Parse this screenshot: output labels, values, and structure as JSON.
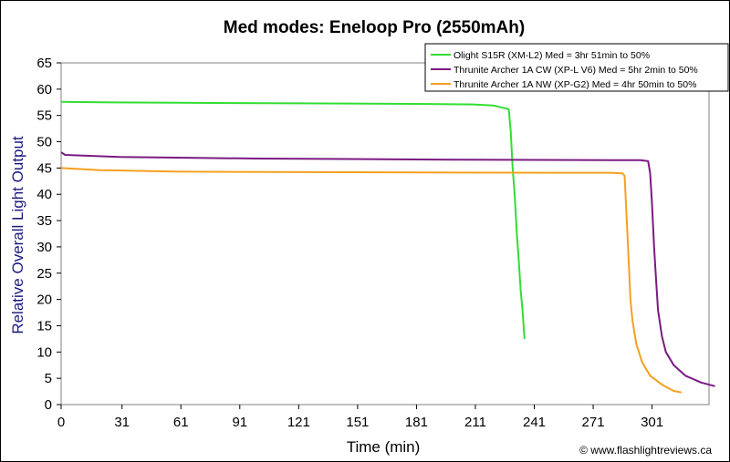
{
  "chart_data": {
    "type": "line",
    "title": "Med modes: Eneloop Pro (2550mAh)",
    "xlabel": "Time (min)",
    "ylabel": "Relative Overall Light Output",
    "xlim": [
      0,
      330
    ],
    "ylim": [
      0,
      65
    ],
    "xticks": [
      "0",
      "31",
      "61",
      "91",
      "121",
      "151",
      "181",
      "211",
      "241",
      "271",
      "301"
    ],
    "yticks": [
      "0",
      "5",
      "10",
      "15",
      "20",
      "25",
      "30",
      "35",
      "40",
      "45",
      "50",
      "55",
      "60",
      "65"
    ],
    "grid": false,
    "legend_position": "top-right",
    "credit": "© www.flashlightreviews.ca",
    "series": [
      {
        "name": "Olight S15R (XM-L2) Med = 3hr 51min to 50%",
        "color": "#33dd33",
        "points": [
          [
            0,
            57.6
          ],
          [
            20,
            57.5
          ],
          [
            60,
            57.4
          ],
          [
            120,
            57.3
          ],
          [
            180,
            57.2
          ],
          [
            210,
            57.1
          ],
          [
            220,
            56.9
          ],
          [
            228,
            56.2
          ],
          [
            229,
            52
          ],
          [
            230,
            45
          ],
          [
            231,
            40
          ],
          [
            232,
            33
          ],
          [
            233,
            28
          ],
          [
            234,
            22
          ],
          [
            235,
            18
          ],
          [
            236,
            12.5
          ]
        ]
      },
      {
        "name": "Thrunite Archer 1A CW (XP-L V6) Med = 5hr 2min to 50%",
        "color": "#7a1a82",
        "points": [
          [
            0,
            48
          ],
          [
            2,
            47.5
          ],
          [
            30,
            47.1
          ],
          [
            100,
            46.8
          ],
          [
            200,
            46.6
          ],
          [
            280,
            46.5
          ],
          [
            295,
            46.5
          ],
          [
            299,
            46.3
          ],
          [
            300,
            44
          ],
          [
            301,
            38
          ],
          [
            302,
            30
          ],
          [
            303,
            24
          ],
          [
            304,
            18
          ],
          [
            306,
            13
          ],
          [
            308,
            10
          ],
          [
            312,
            7.5
          ],
          [
            318,
            5.5
          ],
          [
            326,
            4.2
          ],
          [
            333,
            3.5
          ]
        ]
      },
      {
        "name": "Thrunite Archer 1A NW (XP-G2) Med = 4hr 50min to 50%",
        "color": "#f5a020",
        "points": [
          [
            0,
            45
          ],
          [
            20,
            44.6
          ],
          [
            60,
            44.3
          ],
          [
            150,
            44.2
          ],
          [
            250,
            44.1
          ],
          [
            280,
            44.1
          ],
          [
            286,
            44.0
          ],
          [
            287,
            43.5
          ],
          [
            288,
            36
          ],
          [
            289,
            28
          ],
          [
            290,
            20
          ],
          [
            291,
            16
          ],
          [
            293,
            11.5
          ],
          [
            296,
            8
          ],
          [
            300,
            5.5
          ],
          [
            306,
            3.8
          ],
          [
            312,
            2.6
          ],
          [
            316,
            2.3
          ]
        ]
      }
    ]
  }
}
